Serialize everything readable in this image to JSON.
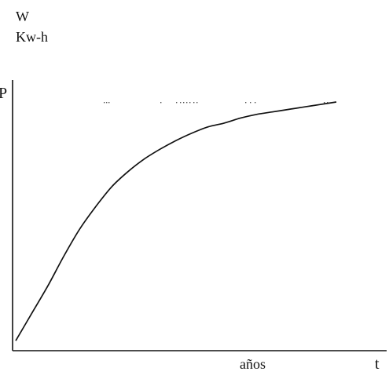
{
  "chart_data": {
    "type": "line",
    "title": "",
    "y_unit_labels": [
      "W",
      "Kw-h"
    ],
    "y_top_marker": "P",
    "xlabel": "años",
    "x_axis_symbol": "t",
    "xlim": [
      0,
      10
    ],
    "ylim": [
      0,
      1
    ],
    "grid": false,
    "legend": "none",
    "series": [
      {
        "x": [
          0,
          0.5,
          1,
          1.5,
          2,
          2.5,
          3,
          3.5,
          4,
          4.5,
          5,
          5.5,
          6,
          6.5,
          7,
          7.5,
          8,
          8.5,
          9,
          9.5,
          10
        ],
        "y": [
          0.04,
          0.15,
          0.26,
          0.38,
          0.49,
          0.58,
          0.66,
          0.72,
          0.77,
          0.81,
          0.845,
          0.875,
          0.9,
          0.915,
          0.935,
          0.95,
          0.96,
          0.97,
          0.98,
          0.99,
          1.0
        ]
      }
    ],
    "color": "#111111"
  }
}
